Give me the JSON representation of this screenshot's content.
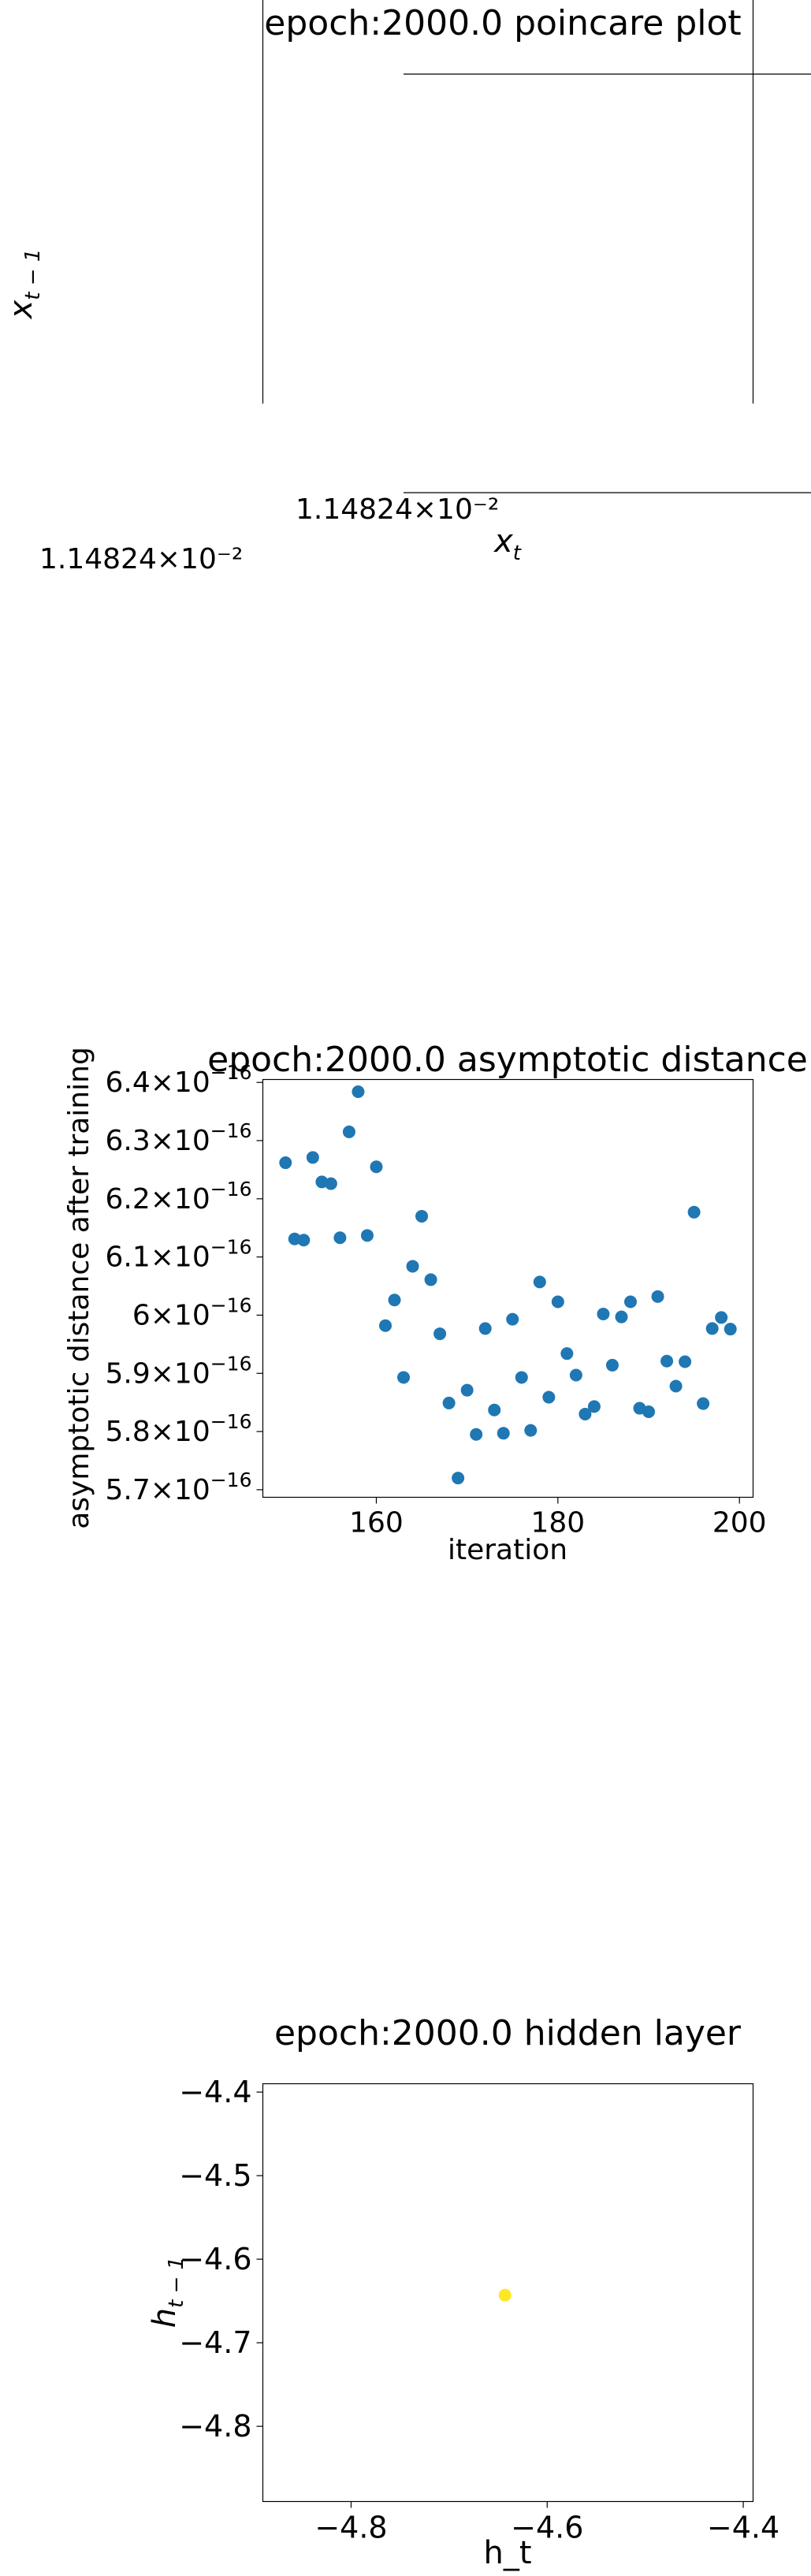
{
  "colors": {
    "scatter": "#1f77b4",
    "hidden_point": "#fde725",
    "axis": "#000000"
  },
  "chart_data": [
    {
      "type": "scatter",
      "title": "epoch:2000.0 poincare plot",
      "xlabel": "x_t",
      "ylabel": "x_{t-1}",
      "x_offset_label": "1.14824×10⁻²",
      "y_offset_label": "1.14824×10⁻²",
      "x": [],
      "y": []
    },
    {
      "type": "scatter",
      "title": "epoch:2000.0 asymptotic distance",
      "xlabel": "iteration",
      "ylabel": "asymptotic distance after training",
      "xlim": [
        147.5,
        201.5
      ],
      "ylim": [
        5.687e-16,
        6.405e-16
      ],
      "x_ticks": [
        160,
        180,
        200
      ],
      "y_ticks": [
        {
          "value": 5.7e-16,
          "mantissa": "5.7",
          "exp": "−16"
        },
        {
          "value": 5.8e-16,
          "mantissa": "5.8",
          "exp": "−16"
        },
        {
          "value": 5.9e-16,
          "mantissa": "5.9",
          "exp": "−16"
        },
        {
          "value": 6e-16,
          "mantissa": "6",
          "exp": "−16"
        },
        {
          "value": 6.1e-16,
          "mantissa": "6.1",
          "exp": "−16"
        },
        {
          "value": 6.2e-16,
          "mantissa": "6.2",
          "exp": "−16"
        },
        {
          "value": 6.3e-16,
          "mantissa": "6.3",
          "exp": "−16"
        },
        {
          "value": 6.4e-16,
          "mantissa": "6.4",
          "exp": "−16"
        }
      ],
      "x": [
        150,
        151,
        152,
        153,
        154,
        155,
        156,
        157,
        158,
        159,
        160,
        161,
        162,
        163,
        164,
        165,
        166,
        167,
        168,
        169,
        170,
        171,
        172,
        173,
        174,
        175,
        176,
        177,
        178,
        179,
        180,
        181,
        182,
        183,
        184,
        185,
        186,
        187,
        188,
        189,
        190,
        191,
        192,
        193,
        194,
        195,
        196,
        197,
        198,
        199
      ],
      "y": [
        6.262e-16,
        6.131e-16,
        6.129e-16,
        6.271e-16,
        6.229e-16,
        6.226e-16,
        6.133e-16,
        6.315e-16,
        6.384e-16,
        6.137e-16,
        6.255e-16,
        5.982e-16,
        6.026e-16,
        5.893e-16,
        6.084e-16,
        6.17e-16,
        6.061e-16,
        5.968e-16,
        5.849e-16,
        5.72e-16,
        5.871e-16,
        5.795e-16,
        5.977e-16,
        5.837e-16,
        5.797e-16,
        5.993e-16,
        5.893e-16,
        5.802e-16,
        6.057e-16,
        5.859e-16,
        6.023e-16,
        5.934e-16,
        5.897e-16,
        5.83e-16,
        5.843e-16,
        6.002e-16,
        5.914e-16,
        5.997e-16,
        6.023e-16,
        5.84e-16,
        5.834e-16,
        6.032e-16,
        5.921e-16,
        5.878e-16,
        5.92e-16,
        6.177e-16,
        5.848e-16,
        5.977e-16,
        5.996e-16,
        5.976e-16
      ]
    },
    {
      "type": "scatter",
      "title": "epoch:2000.0 hidden layer",
      "xlabel": "h_t",
      "ylabel": "h_{t-1}",
      "xlim": [
        -4.89,
        -4.39
      ],
      "ylim": [
        -4.89,
        -4.39
      ],
      "x_ticks": [
        "−4.8",
        "−4.6",
        "−4.4"
      ],
      "y_ticks": [
        "−4.4",
        "−4.5",
        "−4.6",
        "−4.7",
        "−4.8"
      ],
      "x": [
        -4.643
      ],
      "y": [
        -4.643
      ]
    }
  ]
}
